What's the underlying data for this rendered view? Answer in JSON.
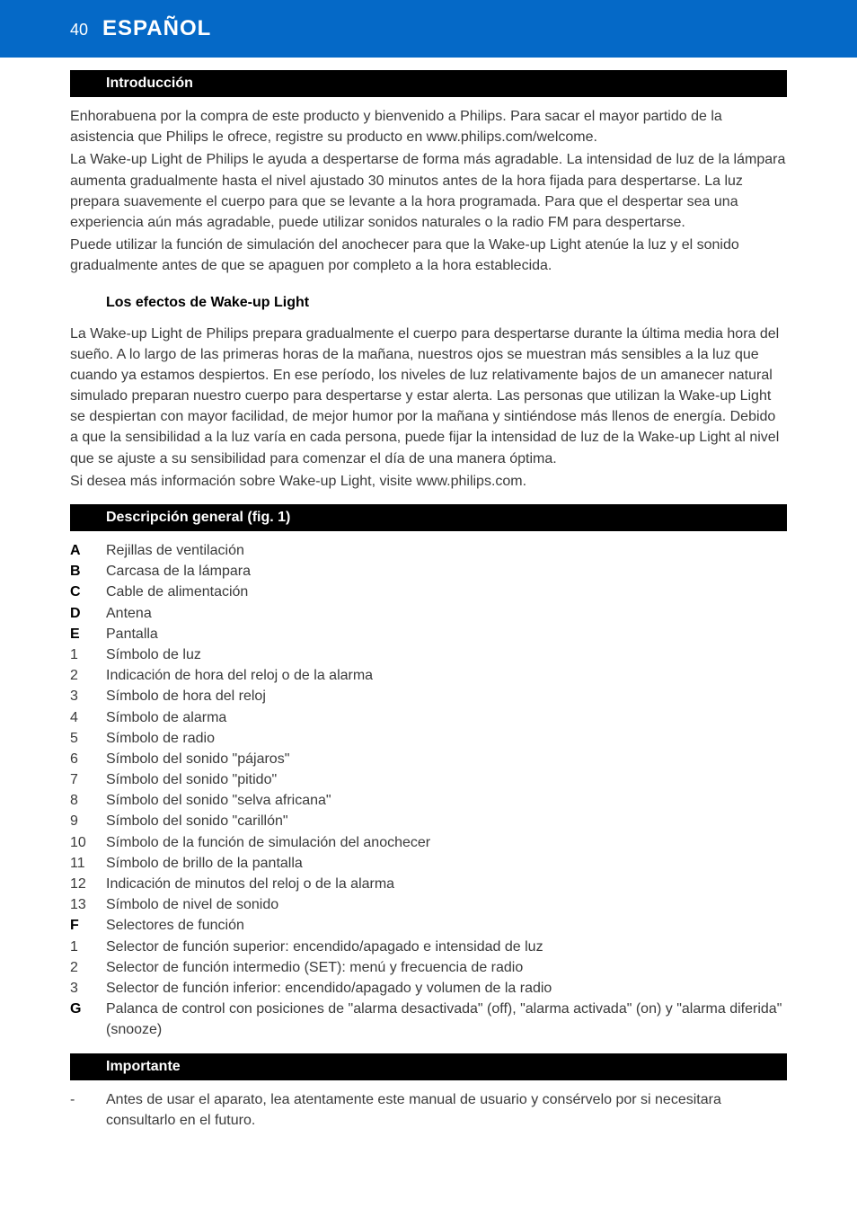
{
  "header": {
    "page_number": "40",
    "language": "ESPAÑOL",
    "bg_color": "#0569c7",
    "text_color": "#ffffff"
  },
  "sections": {
    "intro": {
      "title": "Introducción",
      "paragraphs": [
        "Enhorabuena por la compra de este producto y bienvenido a Philips. Para sacar el mayor partido de la asistencia que Philips le ofrece, registre su producto en www.philips.com/welcome.",
        "La Wake-up Light de Philips le ayuda a despertarse de forma más agradable. La intensidad de luz de la lámpara aumenta gradualmente hasta el nivel ajustado 30 minutos antes de la hora fijada para despertarse. La luz prepara suavemente el cuerpo para que se levante a la hora programada. Para que el despertar sea una experiencia aún más agradable, puede utilizar sonidos naturales o la radio FM para despertarse.",
        "Puede utilizar la función de simulación del anochecer para que la Wake-up Light atenúe la luz y el sonido gradualmente antes de que se apaguen por completo a la hora establecida."
      ]
    },
    "effects": {
      "title": "Los efectos de Wake-up Light",
      "paragraphs": [
        "La Wake-up Light de Philips prepara gradualmente el cuerpo para despertarse durante la última media hora del sueño. A lo largo de las primeras horas de la mañana, nuestros ojos se muestran más sensibles a la luz que cuando ya estamos despiertos. En ese período, los niveles de luz relativamente bajos de un amanecer natural simulado preparan nuestro cuerpo para despertarse y estar alerta. Las personas que utilizan la Wake-up Light se despiertan con mayor facilidad, de mejor humor por la mañana y sintiéndose más llenos de energía. Debido a que la sensibilidad a la luz varía en cada persona, puede fijar la intensidad de luz de la Wake-up Light al nivel que se ajuste a su sensibilidad para comenzar el día de una manera óptima.",
        "Si desea más información sobre Wake-up Light, visite www.philips.com."
      ]
    },
    "overview": {
      "title": "Descripción general (fig. 1)",
      "items": [
        {
          "key": "A",
          "bold": true,
          "text": "Rejillas de ventilación"
        },
        {
          "key": "B",
          "bold": true,
          "text": "Carcasa de la lámpara"
        },
        {
          "key": "C",
          "bold": true,
          "text": "Cable de alimentación"
        },
        {
          "key": "D",
          "bold": true,
          "text": "Antena"
        },
        {
          "key": "E",
          "bold": true,
          "text": "Pantalla"
        },
        {
          "key": "1",
          "bold": false,
          "text": "Símbolo de luz"
        },
        {
          "key": "2",
          "bold": false,
          "text": "Indicación de hora del reloj o de la alarma"
        },
        {
          "key": "3",
          "bold": false,
          "text": "Símbolo de hora del reloj"
        },
        {
          "key": "4",
          "bold": false,
          "text": "Símbolo de alarma"
        },
        {
          "key": "5",
          "bold": false,
          "text": "Símbolo de radio"
        },
        {
          "key": "6",
          "bold": false,
          "text": "Símbolo del sonido \"pájaros\""
        },
        {
          "key": "7",
          "bold": false,
          "text": "Símbolo del sonido \"pitido\""
        },
        {
          "key": "8",
          "bold": false,
          "text": "Símbolo del sonido \"selva africana\""
        },
        {
          "key": "9",
          "bold": false,
          "text": "Símbolo del sonido \"carillón\""
        },
        {
          "key": "10",
          "bold": false,
          "text": "Símbolo de la función de simulación del anochecer"
        },
        {
          "key": "11",
          "bold": false,
          "text": "Símbolo de brillo de la pantalla"
        },
        {
          "key": "12",
          "bold": false,
          "text": "Indicación de minutos del reloj o de la alarma"
        },
        {
          "key": "13",
          "bold": false,
          "text": "Símbolo de nivel de sonido"
        },
        {
          "key": "F",
          "bold": true,
          "text": "Selectores de función"
        },
        {
          "key": "1",
          "bold": false,
          "text": "Selector de función superior: encendido/apagado e intensidad de luz"
        },
        {
          "key": "2",
          "bold": false,
          "text": "Selector de función intermedio (SET): menú y frecuencia de radio"
        },
        {
          "key": "3",
          "bold": false,
          "text": "Selector de función inferior: encendido/apagado y volumen de la radio"
        },
        {
          "key": "G",
          "bold": true,
          "text": "Palanca de control con posiciones de \"alarma desactivada\" (off), \"alarma activada\" (on) y \"alarma diferida\" (snooze)"
        }
      ]
    },
    "important": {
      "title": "Importante",
      "bullets": [
        "Antes de usar el aparato, lea atentamente este manual de usuario y consérvelo por si necesitara consultarlo en el futuro."
      ]
    }
  },
  "styles": {
    "section_bar_bg": "#000000",
    "section_bar_fg": "#ffffff",
    "body_text_color": "#3a3a3a",
    "body_font_size": 16
  }
}
